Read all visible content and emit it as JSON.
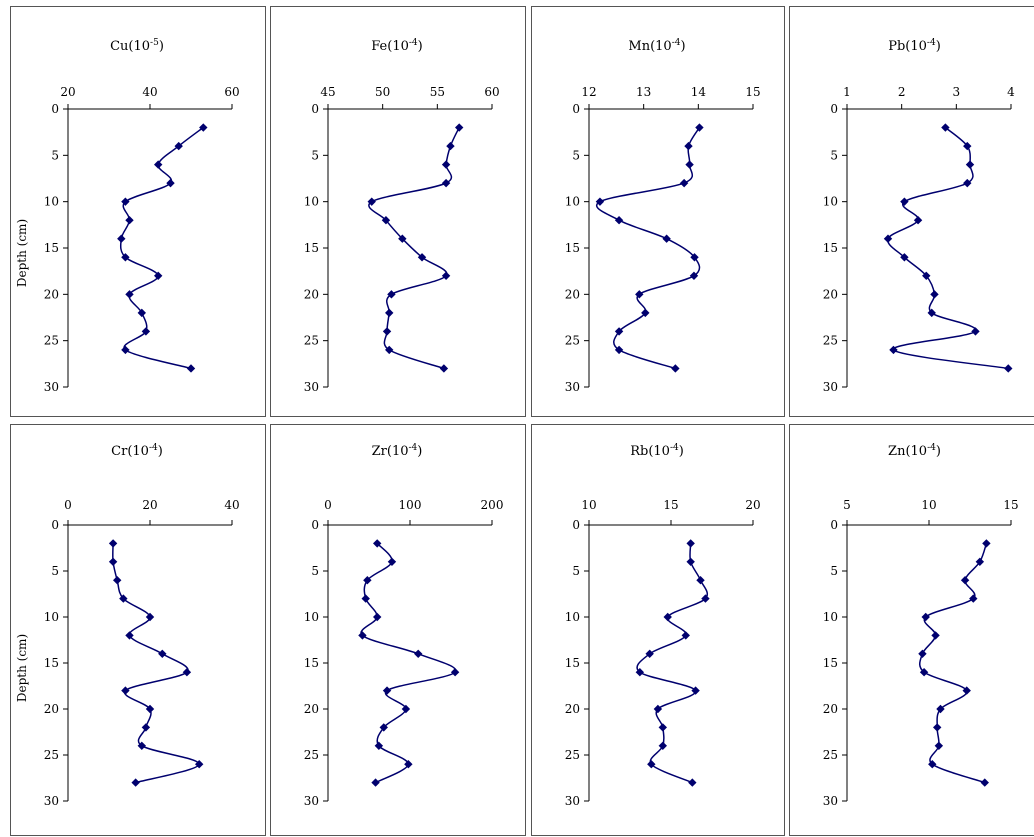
{
  "chart_data": [
    {
      "type": "line",
      "title": "Cu",
      "unit": "-5",
      "xlim": [
        20,
        60
      ],
      "xticks": [
        20,
        40,
        60
      ],
      "ylim": [
        0,
        30
      ],
      "yticks": [
        0,
        5,
        10,
        15,
        20,
        25,
        30
      ],
      "ylabel": "Depth (cm)",
      "series": [
        {
          "x": [
            53,
            47,
            42,
            45,
            34,
            35,
            33,
            34,
            42,
            35,
            38,
            39,
            34,
            50
          ],
          "y": [
            2,
            4,
            6,
            8,
            10,
            12,
            14,
            16,
            18,
            20,
            22,
            24,
            26,
            28
          ]
        }
      ]
    },
    {
      "type": "line",
      "title": "Fe",
      "unit": "-4",
      "xlim": [
        45,
        60
      ],
      "xticks": [
        45,
        50,
        55,
        60
      ],
      "ylim": [
        0,
        30
      ],
      "yticks": [
        0,
        5,
        10,
        15,
        20,
        25,
        30
      ],
      "ylabel": "",
      "series": [
        {
          "x": [
            57,
            56.2,
            55.8,
            55.8,
            49,
            50.3,
            51.8,
            53.6,
            55.8,
            50.8,
            50.6,
            50.4,
            50.6,
            55.6
          ],
          "y": [
            2,
            4,
            6,
            8,
            10,
            12,
            14,
            16,
            18,
            20,
            22,
            24,
            26,
            28
          ]
        }
      ]
    },
    {
      "type": "line",
      "title": "Mn",
      "unit": "-4",
      "xlim": [
        12,
        15
      ],
      "xticks": [
        12,
        13,
        14,
        15
      ],
      "ylim": [
        0,
        30
      ],
      "yticks": [
        0,
        5,
        10,
        15,
        20,
        25,
        30
      ],
      "ylabel": "",
      "series": [
        {
          "x": [
            14.02,
            13.82,
            13.84,
            13.74,
            12.2,
            12.55,
            13.42,
            13.93,
            13.92,
            12.92,
            13.03,
            12.55,
            12.55,
            13.58
          ],
          "y": [
            2,
            4,
            6,
            8,
            10,
            12,
            14,
            16,
            18,
            20,
            22,
            24,
            26,
            28
          ]
        }
      ]
    },
    {
      "type": "line",
      "title": "Pb",
      "unit": "-4",
      "xlim": [
        1,
        4
      ],
      "xticks": [
        1,
        2,
        3,
        4
      ],
      "ylim": [
        0,
        30
      ],
      "yticks": [
        0,
        5,
        10,
        15,
        20,
        25,
        30
      ],
      "ylabel": "",
      "series": [
        {
          "x": [
            2.8,
            3.2,
            3.25,
            3.2,
            2.05,
            2.3,
            1.75,
            2.05,
            2.45,
            2.6,
            2.55,
            3.35,
            1.85,
            3.95
          ],
          "y": [
            2,
            4,
            6,
            8,
            10,
            12,
            14,
            16,
            18,
            20,
            22,
            24,
            26,
            28
          ]
        }
      ]
    },
    {
      "type": "line",
      "title": "Cr",
      "unit": "-4",
      "xlim": [
        0,
        40
      ],
      "xticks": [
        0,
        20,
        40
      ],
      "ylim": [
        0,
        30
      ],
      "yticks": [
        0,
        5,
        10,
        15,
        20,
        25,
        30
      ],
      "ylabel": "Depth (cm)",
      "series": [
        {
          "x": [
            11,
            11,
            12,
            13.5,
            20,
            15,
            23,
            29,
            14,
            20,
            19,
            18,
            32,
            16.5
          ],
          "y": [
            2,
            4,
            6,
            8,
            10,
            12,
            14,
            16,
            18,
            20,
            22,
            24,
            26,
            28
          ]
        }
      ]
    },
    {
      "type": "line",
      "title": "Zr",
      "unit": "-4",
      "xlim": [
        0,
        200
      ],
      "xticks": [
        0,
        100,
        200
      ],
      "ylim": [
        0,
        30
      ],
      "yticks": [
        0,
        5,
        10,
        15,
        20,
        25,
        30
      ],
      "ylabel": "",
      "series": [
        {
          "x": [
            60,
            78,
            48,
            46,
            60,
            42,
            110,
            155,
            72,
            95,
            68,
            62,
            98,
            58
          ],
          "y": [
            2,
            4,
            6,
            8,
            10,
            12,
            14,
            16,
            18,
            20,
            22,
            24,
            26,
            28
          ]
        }
      ]
    },
    {
      "type": "line",
      "title": "Rb",
      "unit": "-4",
      "xlim": [
        10,
        20
      ],
      "xticks": [
        10,
        15,
        20
      ],
      "ylim": [
        0,
        30
      ],
      "yticks": [
        0,
        5,
        10,
        15,
        20,
        25,
        30
      ],
      "ylabel": "",
      "series": [
        {
          "x": [
            16.2,
            16.2,
            16.8,
            17.1,
            14.8,
            15.9,
            13.7,
            13.1,
            16.5,
            14.2,
            14.5,
            14.5,
            13.8,
            16.3
          ],
          "y": [
            2,
            4,
            6,
            8,
            10,
            12,
            14,
            16,
            18,
            20,
            22,
            24,
            26,
            28
          ]
        }
      ]
    },
    {
      "type": "line",
      "title": "Zn",
      "unit": "-4",
      "xlim": [
        5,
        15
      ],
      "xticks": [
        5,
        10,
        15
      ],
      "ylim": [
        0,
        30
      ],
      "yticks": [
        0,
        5,
        10,
        15,
        20,
        25,
        30
      ],
      "ylabel": "",
      "series": [
        {
          "x": [
            13.5,
            13.1,
            12.2,
            12.7,
            9.8,
            10.4,
            9.6,
            9.7,
            12.3,
            10.7,
            10.5,
            10.6,
            10.2,
            13.4
          ],
          "y": [
            2,
            4,
            6,
            8,
            10,
            12,
            14,
            16,
            18,
            20,
            22,
            24,
            26,
            28
          ]
        }
      ]
    }
  ]
}
